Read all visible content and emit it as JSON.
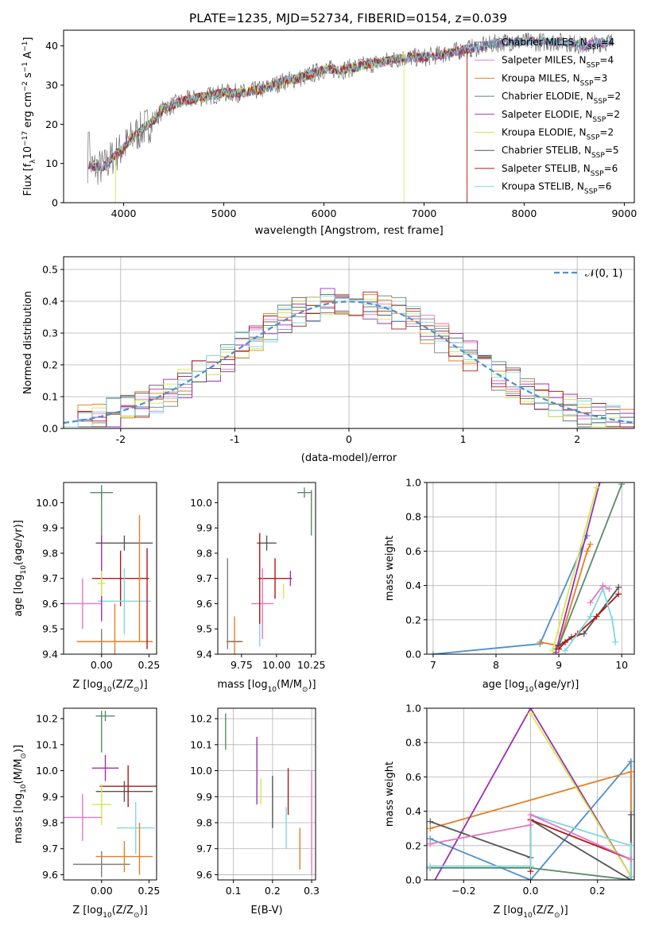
{
  "figure_title": "PLATE=1235, MJD=52734, FIBERID=0154, z=0.039",
  "colors": [
    "#7f7f7f",
    "#e377c2",
    "#e67e22",
    "#5a8a6a",
    "#9b30b0",
    "#d4e84a",
    "#555555",
    "#b01818",
    "#7fd8e0"
  ],
  "model_color": "#4a90d0",
  "chart_data": [
    {
      "id": "spectrum",
      "type": "line",
      "xlabel": "wavelength [Angstrom, rest frame]",
      "ylabel_main": "Flux [f",
      "ylabel_lambda": "λ",
      "ylabel_tail": "10",
      "ylabel_exp": "−17",
      "ylabel_end": " erg cm",
      "ylabel_cm_exp": "−2",
      "ylabel_s": " s",
      "ylabel_s_exp": "−1",
      "ylabel_A": " A",
      "ylabel_A_exp": "−1",
      "ylabel_close": "]",
      "xlim": [
        3400,
        9100
      ],
      "ylim": [
        0,
        44
      ],
      "xticks": [
        4000,
        5000,
        6000,
        7000,
        8000,
        9000
      ],
      "yticks": [
        0,
        10,
        20,
        30,
        40
      ],
      "continuum": {
        "x": [
          3640,
          3700,
          3800,
          3900,
          4000,
          4100,
          4200,
          4300,
          4400,
          4500,
          4600,
          4800,
          5000,
          5200,
          5400,
          5600,
          5800,
          6000,
          6200,
          6400,
          6600,
          6800,
          7000,
          7200,
          7400,
          7600,
          7800,
          8000,
          8200,
          8400,
          8600,
          8800
        ],
        "y": [
          10,
          9,
          9,
          12,
          14,
          17,
          19,
          21,
          24,
          25,
          26,
          27,
          28,
          28,
          29,
          31,
          32,
          34,
          34,
          35,
          36,
          37,
          37,
          38,
          39,
          40,
          41,
          41,
          41,
          41,
          40,
          41
        ]
      },
      "legend": [
        {
          "name": "Chabrier MILES, N",
          "sub": "SSP",
          "tail": "=4"
        },
        {
          "name": "Salpeter MILES, N",
          "sub": "SSP",
          "tail": "=4"
        },
        {
          "name": "Kroupa MILES, N",
          "sub": "SSP",
          "tail": "=3"
        },
        {
          "name": "Chabrier ELODIE, N",
          "sub": "SSP",
          "tail": "=2"
        },
        {
          "name": "Salpeter ELODIE, N",
          "sub": "SSP",
          "tail": "=2"
        },
        {
          "name": "Kroupa ELODIE, N",
          "sub": "SSP",
          "tail": "=2"
        },
        {
          "name": "Chabrier STELIB, N",
          "sub": "SSP",
          "tail": "=5"
        },
        {
          "name": "Salpeter STELIB, N",
          "sub": "SSP",
          "tail": "=6"
        },
        {
          "name": "Kroupa STELIB, N",
          "sub": "SSP",
          "tail": "=6"
        }
      ],
      "cutoffs": [
        {
          "series": 5,
          "x": 3920
        },
        {
          "series": 5,
          "x": 6800
        },
        {
          "series": 2,
          "x": 7430
        },
        {
          "series": 7,
          "x": 7430
        }
      ]
    },
    {
      "id": "residuals",
      "type": "step-histogram",
      "xlabel": "(data-model)/error",
      "ylabel": "Normed distribution",
      "xlim": [
        -2.5,
        2.5
      ],
      "ylim": [
        0,
        0.54
      ],
      "xticks": [
        -2,
        -1,
        0,
        1,
        2
      ],
      "yticks": [
        0.0,
        0.1,
        0.2,
        0.3,
        0.4,
        0.5
      ],
      "legend_label": "𝒩(0, 1)",
      "bin_width": 0.125,
      "grid": true
    },
    {
      "id": "age_vs_Z",
      "type": "errorbar",
      "xlabel": "Z [log",
      "xlabel_sub": "10",
      "xlabel_tail": "(Z/Z",
      "xlabel_sun": "⊙",
      "xlabel_end": ")]",
      "ylabel": "age  [log",
      "ylabel_sub": "10",
      "ylabel_tail": "(age/yr)]",
      "xlim": [
        -0.2,
        0.29
      ],
      "ylim": [
        9.4,
        10.08
      ],
      "xticks": [
        "0.00",
        "0.25"
      ],
      "xtick_vals": [
        0.0,
        0.25
      ],
      "yticks": [
        9.4,
        9.5,
        9.6,
        9.7,
        9.8,
        9.9,
        10.0
      ],
      "points": [
        {
          "series": 3,
          "x": 0.0,
          "y": 10.04,
          "ex": 0.06,
          "ey": 0.03
        },
        {
          "series": 3,
          "x": 0.0,
          "y": 9.95,
          "ex": 0.0,
          "ey": 0.09
        },
        {
          "series": 6,
          "x": 0.12,
          "y": 9.84,
          "ex": 0.15,
          "ey": 0.03
        },
        {
          "series": 7,
          "x": 0.1,
          "y": 9.7,
          "ex": 0.15,
          "ey": 0.11
        },
        {
          "series": 8,
          "x": 0.12,
          "y": 9.61,
          "ex": 0.14,
          "ey": 0.13
        },
        {
          "series": 1,
          "x": -0.1,
          "y": 9.6,
          "ex": 0.1,
          "ey": 0.1
        },
        {
          "series": 4,
          "x": 0.0,
          "y": 9.7,
          "ex": 0.0,
          "ey": 0.17
        },
        {
          "series": 5,
          "x": 0.0,
          "y": 9.68,
          "ex": 0.02,
          "ey": 0.05
        },
        {
          "series": 0,
          "x": 0.0,
          "y": 9.45,
          "ex": 0.0,
          "ey": 0.05
        },
        {
          "series": 2,
          "x": 0.07,
          "y": 9.45,
          "ex": 0.2,
          "ey": 0.15
        },
        {
          "series": 2,
          "x": 0.2,
          "y": 9.7,
          "ex": 0.0,
          "ey": 0.25
        },
        {
          "series": 7,
          "x": 0.24,
          "y": 9.62,
          "ex": 0.0,
          "ey": 0.2
        }
      ]
    },
    {
      "id": "age_vs_mass",
      "type": "errorbar",
      "xlabel": "mass [log",
      "xlabel_sub": "10",
      "xlabel_tail": "(M/M",
      "xlabel_sun": "⊙",
      "xlabel_end": ")]",
      "xlim": [
        9.58,
        10.28
      ],
      "ylim": [
        9.4,
        10.08
      ],
      "xticks": [
        "9.75",
        "10.00",
        "10.25"
      ],
      "xtick_vals": [
        9.75,
        10.0,
        10.25
      ],
      "yticks": [
        9.4,
        9.5,
        9.6,
        9.7,
        9.8,
        9.9,
        10.0
      ],
      "points": [
        {
          "series": 3,
          "x": 10.2,
          "y": 10.04,
          "ex": 0.05,
          "ey": 0.02
        },
        {
          "series": 3,
          "x": 10.25,
          "y": 9.96,
          "ex": 0.0,
          "ey": 0.09
        },
        {
          "series": 6,
          "x": 9.93,
          "y": 9.84,
          "ex": 0.07,
          "ey": 0.03
        },
        {
          "series": 7,
          "x": 9.99,
          "y": 9.7,
          "ex": 0.12,
          "ey": 0.08
        },
        {
          "series": 8,
          "x": 9.88,
          "y": 9.6,
          "ex": 0.05,
          "ey": 0.17
        },
        {
          "series": 1,
          "x": 9.9,
          "y": 9.6,
          "ex": 0.08,
          "ey": 0.14
        },
        {
          "series": 4,
          "x": 10.1,
          "y": 9.7,
          "ex": 0.0,
          "ey": 0.03
        },
        {
          "series": 5,
          "x": 10.05,
          "y": 9.65,
          "ex": 0.0,
          "ey": 0.03
        },
        {
          "series": 0,
          "x": 9.65,
          "y": 9.6,
          "ex": 0.0,
          "ey": 0.18
        },
        {
          "series": 2,
          "x": 9.7,
          "y": 9.45,
          "ex": 0.06,
          "ey": 0.1
        },
        {
          "series": 7,
          "x": 9.88,
          "y": 9.7,
          "ex": 0.0,
          "ey": 0.18
        },
        {
          "series": 0,
          "x": 9.7,
          "y": 9.45,
          "ex": 0.05,
          "ey": 0.0
        }
      ]
    },
    {
      "id": "weight_vs_age",
      "type": "line",
      "xlabel": "age  [log",
      "xlabel_sub": "10",
      "xlabel_tail": "(age/yr)]",
      "ylabel": "mass weight",
      "xlim": [
        6.9,
        10.2
      ],
      "ylim": [
        0,
        1.0
      ],
      "xticks": [
        7,
        8,
        9,
        10
      ],
      "yticks": [
        0.0,
        0.2,
        0.4,
        0.6,
        0.8,
        1.0
      ],
      "grid": true,
      "series": [
        {
          "color": 9,
          "x": [
            7.0,
            8.7,
            9.45
          ],
          "y": [
            0.0,
            0.06,
            0.69
          ]
        },
        {
          "color": 2,
          "x": [
            8.7,
            9.0,
            9.45,
            9.5
          ],
          "y": [
            0.07,
            0.05,
            0.6,
            0.64
          ]
        },
        {
          "color": 3,
          "x": [
            8.95,
            9.0,
            10.0
          ],
          "y": [
            0.03,
            0.05,
            0.99
          ]
        },
        {
          "color": 4,
          "x": [
            8.95,
            9.65
          ],
          "y": [
            0.01,
            1.0
          ]
        },
        {
          "color": 5,
          "x": [
            8.9,
            9.6
          ],
          "y": [
            0.02,
            0.97
          ]
        },
        {
          "color": 6,
          "x": [
            9.0,
            9.2,
            9.4,
            9.95
          ],
          "y": [
            0.05,
            0.1,
            0.12,
            0.39
          ]
        },
        {
          "color": 7,
          "x": [
            9.0,
            9.1,
            9.3,
            9.6,
            9.95
          ],
          "y": [
            0.03,
            0.07,
            0.12,
            0.22,
            0.35
          ]
        },
        {
          "color": 8,
          "x": [
            9.1,
            9.5,
            9.7,
            9.85,
            9.9
          ],
          "y": [
            0.02,
            0.22,
            0.38,
            0.2,
            0.07
          ]
        },
        {
          "color": 1,
          "x": [
            9.5,
            9.7,
            9.8
          ],
          "y": [
            0.3,
            0.4,
            0.38
          ]
        }
      ]
    },
    {
      "id": "mass_vs_Z",
      "type": "errorbar",
      "xlabel": "Z [log",
      "xlabel_sub": "10",
      "xlabel_tail": "(Z/Z",
      "xlabel_sun": "⊙",
      "xlabel_end": ")]",
      "ylabel": "mass [log",
      "ylabel_sub": "10",
      "ylabel_tail": "(M/M",
      "ylabel_sun": "⊙",
      "ylabel_end": ")]",
      "xlim": [
        -0.2,
        0.29
      ],
      "ylim": [
        9.58,
        10.24
      ],
      "xticks": [
        "0.00",
        "0.25"
      ],
      "xtick_vals": [
        0.0,
        0.25
      ],
      "yticks": [
        9.6,
        9.7,
        9.8,
        9.9,
        10.0,
        10.1,
        10.2
      ],
      "points": [
        {
          "series": 3,
          "x": 0.02,
          "y": 10.21,
          "ex": 0.05,
          "ey": 0.02
        },
        {
          "series": 3,
          "x": 0.0,
          "y": 10.15,
          "ex": 0.0,
          "ey": 0.08
        },
        {
          "series": 4,
          "x": 0.02,
          "y": 10.01,
          "ex": 0.07,
          "ey": 0.05
        },
        {
          "series": 6,
          "x": 0.12,
          "y": 9.92,
          "ex": 0.15,
          "ey": 0.04
        },
        {
          "series": 7,
          "x": 0.14,
          "y": 9.94,
          "ex": 0.15,
          "ey": 0.08
        },
        {
          "series": 5,
          "x": 0.0,
          "y": 9.87,
          "ex": 0.05,
          "ey": 0.08
        },
        {
          "series": 1,
          "x": -0.1,
          "y": 9.82,
          "ex": 0.1,
          "ey": 0.09
        },
        {
          "series": 8,
          "x": 0.18,
          "y": 9.78,
          "ex": 0.1,
          "ey": 0.1
        },
        {
          "series": 0,
          "x": 0.0,
          "y": 9.64,
          "ex": 0.15,
          "ey": 0.05
        },
        {
          "series": 2,
          "x": 0.12,
          "y": 9.67,
          "ex": 0.15,
          "ey": 0.06
        },
        {
          "series": 2,
          "x": 0.2,
          "y": 9.7,
          "ex": 0.0,
          "ey": 0.1
        }
      ]
    },
    {
      "id": "mass_vs_ebv",
      "type": "errorbar",
      "xlabel": "E(B-V)",
      "xlim": [
        0.06,
        0.31
      ],
      "ylim": [
        9.58,
        10.24
      ],
      "xticks": [
        "0.1",
        "0.2",
        "0.3"
      ],
      "xtick_vals": [
        0.1,
        0.2,
        0.3
      ],
      "yticks": [
        9.6,
        9.7,
        9.8,
        9.9,
        10.0,
        10.1,
        10.2
      ],
      "grid": true,
      "points": [
        {
          "series": 3,
          "x": 0.08,
          "y": 10.15,
          "ex": 0.0,
          "ey": 0.07
        },
        {
          "series": 4,
          "x": 0.16,
          "y": 10.0,
          "ex": 0.0,
          "ey": 0.13
        },
        {
          "series": 5,
          "x": 0.17,
          "y": 9.92,
          "ex": 0.0,
          "ey": 0.05
        },
        {
          "series": 6,
          "x": 0.2,
          "y": 9.88,
          "ex": 0.0,
          "ey": 0.1
        },
        {
          "series": 7,
          "x": 0.24,
          "y": 9.92,
          "ex": 0.0,
          "ey": 0.09
        },
        {
          "series": 8,
          "x": 0.235,
          "y": 9.78,
          "ex": 0.0,
          "ey": 0.08
        },
        {
          "series": 2,
          "x": 0.27,
          "y": 9.7,
          "ex": 0.0,
          "ey": 0.08
        },
        {
          "series": 1,
          "x": 0.3,
          "y": 9.8,
          "ex": 0.0,
          "ey": 0.2
        }
      ]
    },
    {
      "id": "weight_vs_Z",
      "type": "line",
      "xlabel": "Z [log",
      "xlabel_sub": "10",
      "xlabel_tail": "(Z/Z",
      "xlabel_sun": "⊙",
      "xlabel_end": ")]",
      "ylabel": "mass weight",
      "xlim": [
        -0.31,
        0.31
      ],
      "ylim": [
        0,
        1.0
      ],
      "xticks": [
        "−0.2",
        "0.0",
        "0.2"
      ],
      "xtick_vals": [
        -0.2,
        0.0,
        0.2
      ],
      "yticks": [
        0.0,
        0.2,
        0.4,
        0.6,
        0.8,
        1.0
      ],
      "grid": true,
      "series": [
        {
          "color": 9,
          "x": [
            -0.3,
            0.0,
            0.3,
            0.3
          ],
          "y": [
            0.24,
            0.0,
            0.69,
            0.0
          ]
        },
        {
          "color": 2,
          "x": [
            -0.3,
            0.3,
            0.3
          ],
          "y": [
            0.3,
            0.63,
            0.0
          ]
        },
        {
          "color": 3,
          "x": [
            -0.3,
            0.0,
            0.3
          ],
          "y": [
            0.07,
            0.07,
            0.0
          ]
        },
        {
          "color": 4,
          "x": [
            -0.3,
            0.0,
            0.3
          ],
          "y": [
            -0.05,
            1.0,
            0.02
          ]
        },
        {
          "color": 5,
          "x": [
            0.0,
            0.3
          ],
          "y": [
            0.97,
            0.02
          ]
        },
        {
          "color": 6,
          "x": [
            -0.3,
            0.0,
            0.0,
            0.3,
            0.3
          ],
          "y": [
            0.34,
            0.13,
            0.35,
            0.0,
            0.38
          ]
        },
        {
          "color": 7,
          "x": [
            0.0,
            0.0,
            0.3
          ],
          "y": [
            0.05,
            0.35,
            0.12
          ]
        },
        {
          "color": 8,
          "x": [
            -0.3,
            0.0,
            0.0,
            0.3,
            0.3
          ],
          "y": [
            0.08,
            0.08,
            0.38,
            0.2,
            0.02
          ]
        },
        {
          "color": 1,
          "x": [
            -0.3,
            0.0,
            0.0,
            0.3
          ],
          "y": [
            0.21,
            0.32,
            0.38,
            0.12
          ]
        }
      ]
    }
  ]
}
